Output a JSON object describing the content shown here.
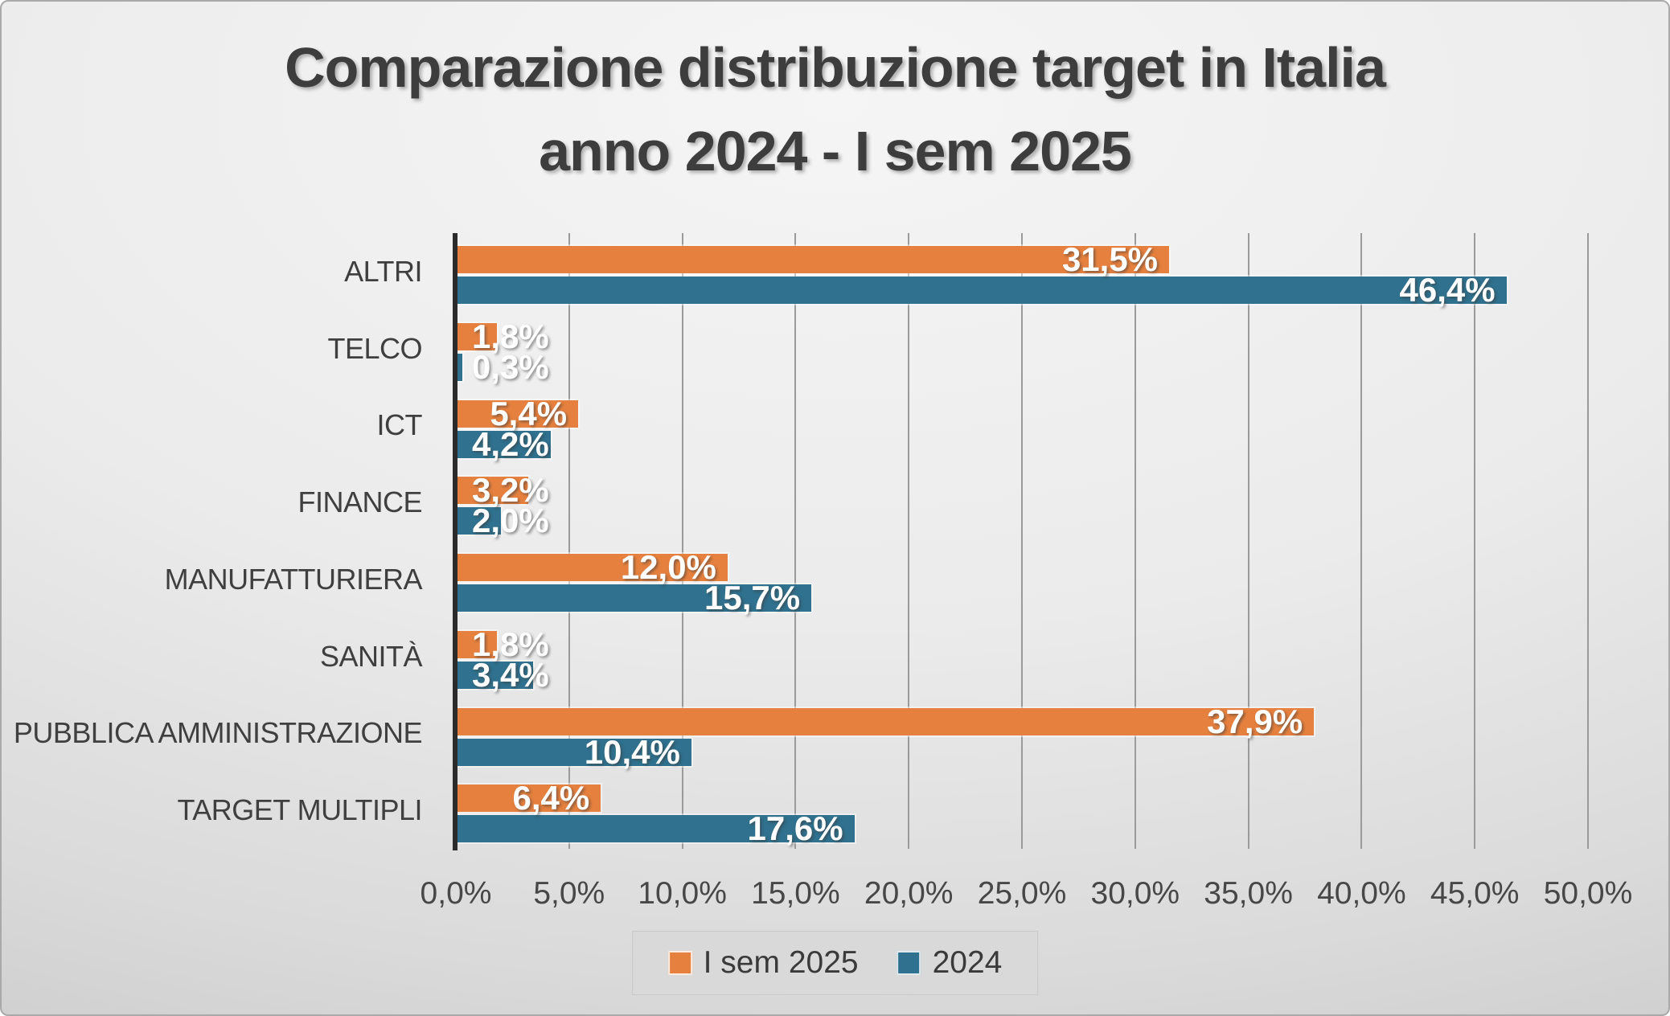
{
  "title": {
    "line1": "Comparazione distribuzione target in Italia",
    "line2": "anno 2024 - I sem 2025"
  },
  "colors": {
    "series_2025": "#E6803E",
    "series_2024": "#2F718E",
    "gridline": "#9A9A9A",
    "axis_line": "#2B2B2B",
    "title_text": "#3D3D3D",
    "data_label_text": "#FFFFFF"
  },
  "chart_data": {
    "type": "bar",
    "orientation": "horizontal",
    "title": "Comparazione distribuzione target in Italia anno 2024 - I sem 2025",
    "categories": [
      "ALTRI",
      "TELCO",
      "ICT",
      "FINANCE",
      "MANUFATTURIERA",
      "SANITÀ",
      "PUBBLICA AMMINISTRAZIONE",
      "TARGET MULTIPLI"
    ],
    "series": [
      {
        "name": "I sem 2025",
        "color": "#E6803E",
        "values": [
          31.5,
          1.8,
          5.4,
          3.2,
          12.0,
          1.8,
          37.9,
          6.4
        ],
        "labels": [
          "31,5%",
          "1,8%",
          "5,4%",
          "3,2%",
          "12,0%",
          "1,8%",
          "37,9%",
          "6,4%"
        ]
      },
      {
        "name": "2024",
        "color": "#2F718E",
        "values": [
          46.4,
          0.3,
          4.2,
          2.0,
          15.7,
          3.4,
          10.4,
          17.6
        ],
        "labels": [
          "46,4%",
          "0,3%",
          "4,2%",
          "2,0%",
          "15,7%",
          "3,4%",
          "10,4%",
          "17,6%"
        ]
      }
    ],
    "x_axis": {
      "min": 0,
      "max": 50,
      "step": 5,
      "tick_labels": [
        "0,0%",
        "5,0%",
        "10,0%",
        "15,0%",
        "20,0%",
        "25,0%",
        "30,0%",
        "35,0%",
        "40,0%",
        "45,0%",
        "50,0%"
      ]
    },
    "legend": {
      "position": "bottom",
      "entries": [
        "I sem 2025",
        "2024"
      ]
    },
    "grid": true,
    "ylim": [
      0,
      50
    ]
  }
}
